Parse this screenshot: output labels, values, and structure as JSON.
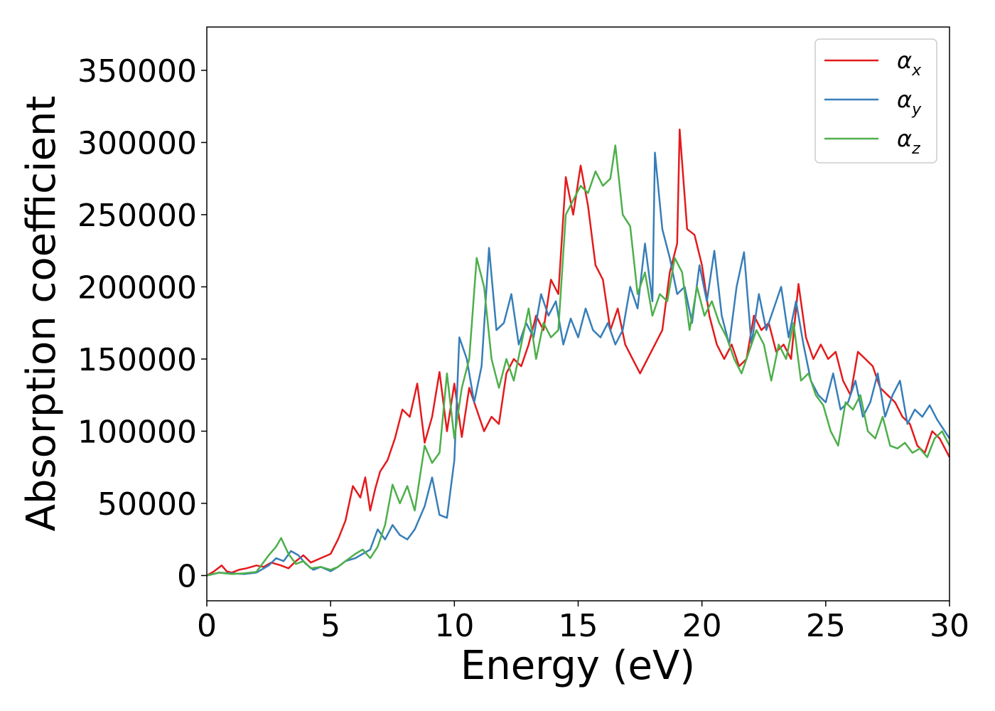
{
  "chart_data": {
    "type": "line",
    "title": "",
    "xlabel": "Energy (eV)",
    "ylabel": "Absorption coefficient",
    "xlim": [
      0,
      30
    ],
    "ylim": [
      -17500,
      380000
    ],
    "xticks": [
      "0",
      "5",
      "10",
      "15",
      "20",
      "25",
      "30"
    ],
    "xtick_values": [
      0,
      5,
      10,
      15,
      20,
      25,
      30
    ],
    "yticks": [
      "0",
      "50000",
      "100000",
      "150000",
      "200000",
      "250000",
      "300000",
      "350000"
    ],
    "ytick_values": [
      0,
      50000,
      100000,
      150000,
      200000,
      250000,
      300000,
      350000
    ],
    "grid": false,
    "legend_position": "top-right",
    "series": [
      {
        "name": "αx",
        "base": "α",
        "sub": "x",
        "color": "#e41a1c",
        "x": [
          0,
          0.3,
          0.6,
          0.8,
          1.0,
          1.3,
          1.6,
          2.0,
          2.3,
          2.6,
          3.0,
          3.3,
          3.6,
          3.9,
          4.2,
          4.6,
          5.0,
          5.3,
          5.6,
          5.9,
          6.2,
          6.4,
          6.6,
          6.8,
          7.0,
          7.3,
          7.6,
          7.9,
          8.2,
          8.5,
          8.8,
          9.1,
          9.4,
          9.7,
          10.0,
          10.3,
          10.6,
          10.9,
          11.2,
          11.5,
          11.8,
          12.1,
          12.4,
          12.7,
          13.0,
          13.3,
          13.6,
          13.9,
          14.2,
          14.5,
          14.8,
          15.1,
          15.4,
          15.7,
          16.0,
          16.3,
          16.6,
          16.9,
          17.2,
          17.5,
          17.8,
          18.1,
          18.4,
          18.7,
          19.0,
          19.1,
          19.4,
          19.7,
          20.0,
          20.3,
          20.6,
          20.9,
          21.2,
          21.5,
          21.8,
          22.1,
          22.4,
          22.7,
          23.0,
          23.3,
          23.6,
          23.9,
          24.2,
          24.5,
          24.8,
          25.1,
          25.4,
          25.7,
          26.0,
          26.3,
          26.6,
          26.9,
          27.2,
          27.5,
          27.8,
          28.1,
          28.4,
          28.7,
          29.0,
          29.3,
          29.6,
          30.0
        ],
        "y": [
          0,
          3000,
          7000,
          3000,
          2000,
          4000,
          5000,
          7000,
          6000,
          9000,
          7000,
          5000,
          10000,
          14000,
          9000,
          12000,
          15000,
          25000,
          38000,
          62000,
          54000,
          68000,
          45000,
          60000,
          72000,
          80000,
          95000,
          115000,
          110000,
          133000,
          92000,
          110000,
          141000,
          100000,
          133000,
          96000,
          130000,
          115000,
          100000,
          110000,
          105000,
          140000,
          150000,
          145000,
          160000,
          180000,
          170000,
          205000,
          195000,
          276000,
          250000,
          284000,
          256000,
          215000,
          205000,
          170000,
          185000,
          160000,
          150000,
          140000,
          150000,
          160000,
          170000,
          210000,
          230000,
          309000,
          240000,
          236000,
          215000,
          180000,
          160000,
          150000,
          160000,
          145000,
          150000,
          180000,
          170000,
          175000,
          155000,
          160000,
          150000,
          202000,
          165000,
          150000,
          160000,
          150000,
          155000,
          135000,
          125000,
          155000,
          150000,
          145000,
          130000,
          125000,
          120000,
          110000,
          105000,
          90000,
          85000,
          100000,
          95000,
          82000
        ]
      },
      {
        "name": "αy",
        "base": "α",
        "sub": "y",
        "color": "#377eb8",
        "x": [
          0,
          0.5,
          1.0,
          1.5,
          2.0,
          2.5,
          2.8,
          3.1,
          3.4,
          3.7,
          4.0,
          4.3,
          4.6,
          5.0,
          5.3,
          5.6,
          6.0,
          6.3,
          6.6,
          6.9,
          7.2,
          7.5,
          7.8,
          8.1,
          8.4,
          8.8,
          9.1,
          9.4,
          9.7,
          10.0,
          10.2,
          10.5,
          10.8,
          11.1,
          11.4,
          11.7,
          12.0,
          12.3,
          12.6,
          12.9,
          13.2,
          13.5,
          13.8,
          14.1,
          14.4,
          14.7,
          15.0,
          15.3,
          15.6,
          15.9,
          16.2,
          16.5,
          16.8,
          17.1,
          17.4,
          17.7,
          18.0,
          18.1,
          18.4,
          18.7,
          19.0,
          19.3,
          19.6,
          19.9,
          20.2,
          20.5,
          20.8,
          21.1,
          21.4,
          21.7,
          22.0,
          22.3,
          22.6,
          22.9,
          23.2,
          23.5,
          23.8,
          24.1,
          24.4,
          24.7,
          25.0,
          25.3,
          25.6,
          25.9,
          26.2,
          26.5,
          26.8,
          27.1,
          27.4,
          27.7,
          28.0,
          28.3,
          28.6,
          28.9,
          29.2,
          29.5,
          30.0
        ],
        "y": [
          0,
          2000,
          1500,
          1000,
          2000,
          7000,
          12000,
          10000,
          17000,
          14000,
          8000,
          4000,
          6000,
          3000,
          6000,
          10000,
          12000,
          15000,
          18000,
          32000,
          25000,
          35000,
          28000,
          25000,
          32000,
          48000,
          68000,
          42000,
          40000,
          80000,
          165000,
          150000,
          120000,
          145000,
          227000,
          170000,
          175000,
          195000,
          160000,
          175000,
          165000,
          195000,
          180000,
          190000,
          160000,
          178000,
          165000,
          185000,
          170000,
          165000,
          175000,
          160000,
          170000,
          200000,
          185000,
          230000,
          190000,
          293000,
          240000,
          220000,
          195000,
          200000,
          175000,
          215000,
          190000,
          225000,
          180000,
          160000,
          200000,
          224000,
          160000,
          195000,
          170000,
          185000,
          200000,
          165000,
          190000,
          160000,
          135000,
          125000,
          120000,
          140000,
          115000,
          120000,
          135000,
          110000,
          120000,
          140000,
          110000,
          125000,
          135000,
          105000,
          115000,
          110000,
          118000,
          108000,
          95000
        ]
      },
      {
        "name": "αz",
        "base": "α",
        "sub": "z",
        "color": "#4daf4a",
        "x": [
          0,
          0.5,
          1.0,
          1.5,
          2.0,
          2.5,
          2.8,
          3.0,
          3.3,
          3.6,
          3.9,
          4.2,
          4.6,
          5.0,
          5.3,
          5.6,
          6.0,
          6.3,
          6.6,
          6.9,
          7.2,
          7.5,
          7.8,
          8.1,
          8.4,
          8.8,
          9.1,
          9.4,
          9.7,
          10.0,
          10.3,
          10.6,
          10.9,
          11.2,
          11.5,
          11.8,
          12.1,
          12.4,
          12.7,
          13.0,
          13.3,
          13.6,
          13.9,
          14.2,
          14.5,
          14.8,
          15.1,
          15.4,
          15.7,
          16.0,
          16.3,
          16.5,
          16.8,
          17.1,
          17.4,
          17.7,
          18.0,
          18.3,
          18.6,
          18.9,
          19.2,
          19.5,
          19.8,
          20.1,
          20.4,
          20.7,
          21.0,
          21.3,
          21.6,
          21.9,
          22.2,
          22.5,
          22.8,
          23.1,
          23.4,
          23.7,
          24.0,
          24.3,
          24.6,
          24.9,
          25.2,
          25.5,
          25.8,
          26.1,
          26.4,
          26.7,
          27.0,
          27.3,
          27.6,
          27.9,
          28.2,
          28.5,
          28.8,
          29.1,
          29.4,
          29.7,
          30.0
        ],
        "y": [
          0,
          2000,
          1000,
          1500,
          2500,
          14000,
          20000,
          26000,
          15000,
          8000,
          10000,
          5000,
          6000,
          4000,
          6000,
          10000,
          15000,
          18000,
          12000,
          20000,
          35000,
          63000,
          50000,
          62000,
          45000,
          90000,
          78000,
          85000,
          140000,
          95000,
          130000,
          150000,
          220000,
          200000,
          150000,
          130000,
          150000,
          135000,
          160000,
          185000,
          150000,
          175000,
          165000,
          170000,
          250000,
          260000,
          270000,
          265000,
          280000,
          270000,
          275000,
          298000,
          250000,
          242000,
          195000,
          210000,
          180000,
          195000,
          190000,
          220000,
          210000,
          170000,
          200000,
          180000,
          190000,
          175000,
          165000,
          150000,
          140000,
          155000,
          170000,
          160000,
          135000,
          160000,
          150000,
          175000,
          135000,
          140000,
          125000,
          118000,
          100000,
          90000,
          120000,
          115000,
          125000,
          100000,
          95000,
          110000,
          90000,
          88000,
          92000,
          85000,
          88000,
          82000,
          95000,
          100000,
          90000
        ]
      }
    ]
  }
}
